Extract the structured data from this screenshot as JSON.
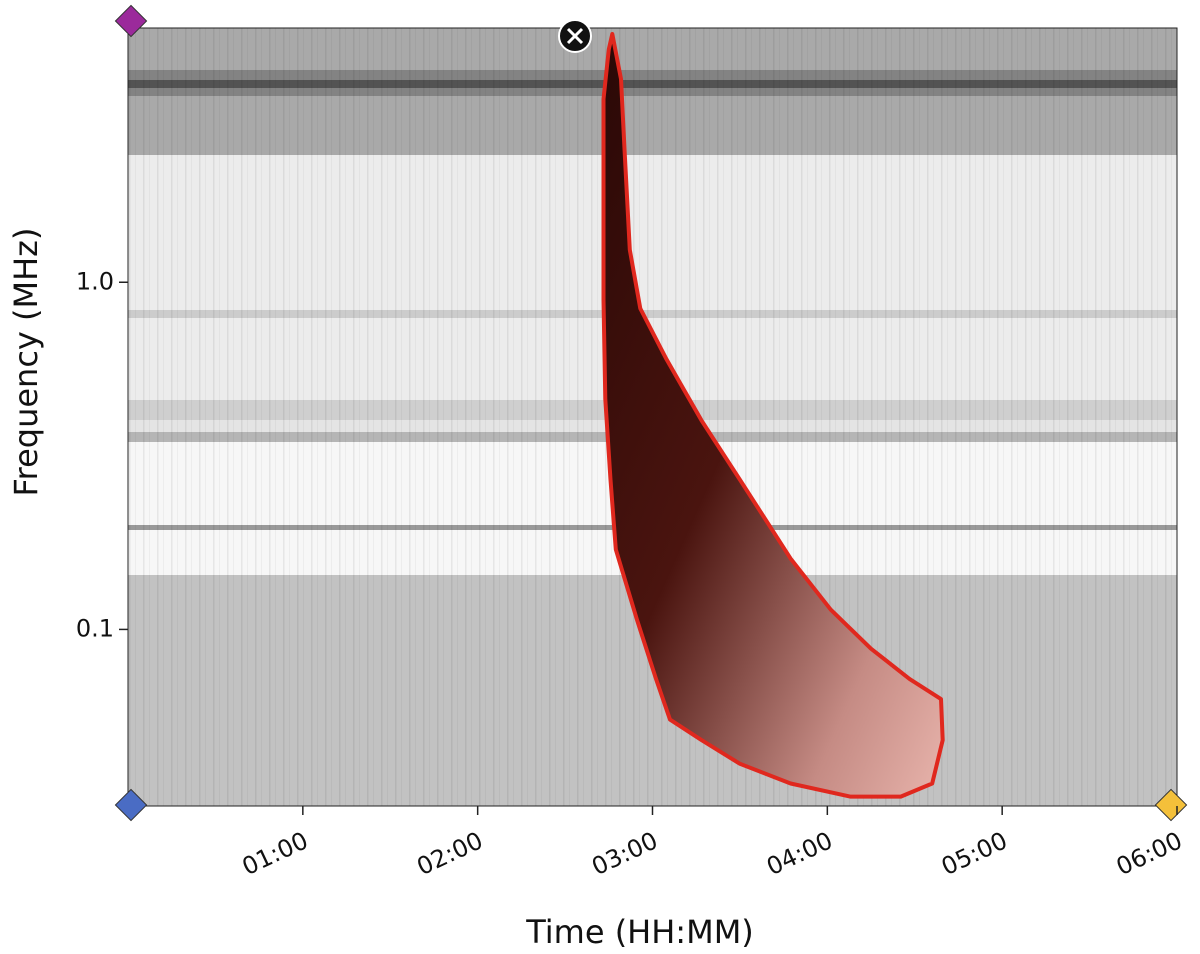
{
  "chart_data": {
    "type": "spectrogram",
    "x_label": "Time (HH:MM)",
    "y_label": "Frequency (MHz)",
    "xlim": [
      0,
      6
    ],
    "xticks": [
      {
        "value": 1,
        "label": "01:00"
      },
      {
        "value": 2,
        "label": "02:00"
      },
      {
        "value": 3,
        "label": "03:00"
      },
      {
        "value": 4,
        "label": "04:00"
      },
      {
        "value": 5,
        "label": "05:00"
      },
      {
        "value": 6,
        "label": "06:00"
      }
    ],
    "ylim": [
      0.031,
      5.4
    ],
    "y_log": true,
    "yticks": [
      0.1,
      {
        "value": 1,
        "label": "1.0"
      }
    ],
    "annotation": {
      "color": "#e0281e",
      "x": [
        2.77,
        2.82,
        2.84,
        2.87,
        2.93,
        3.08,
        3.28,
        3.5,
        3.79,
        4.02,
        4.25,
        4.47,
        4.65,
        4.66,
        4.6,
        4.42,
        4.13,
        3.79,
        3.5,
        3.28,
        3.1,
        3.02,
        2.91,
        2.79,
        2.76,
        2.73,
        2.72,
        2.72,
        2.72,
        2.75
      ],
      "y": [
        5.19,
        3.85,
        2.42,
        1.24,
        0.84,
        0.6,
        0.4,
        0.27,
        0.16,
        0.114,
        0.088,
        0.072,
        0.063,
        0.048,
        0.036,
        0.033,
        0.033,
        0.036,
        0.041,
        0.048,
        0.055,
        0.072,
        0.107,
        0.17,
        0.27,
        0.46,
        0.89,
        1.73,
        3.37,
        4.69
      ]
    }
  }
}
